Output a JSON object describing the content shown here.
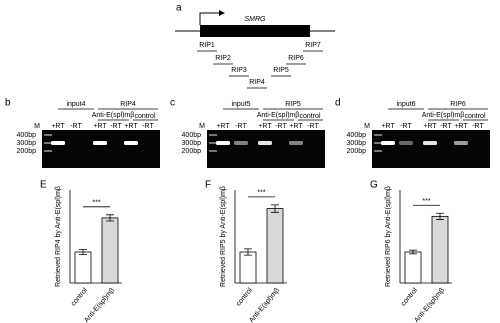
{
  "panel_a": {
    "label": "a",
    "gene": "SMRG",
    "rips": [
      "RIP1",
      "RIP2",
      "RIP3",
      "RIP4",
      "RIP5",
      "RIP6",
      "RIP7"
    ]
  },
  "gels": [
    {
      "label": "b",
      "input": "input4",
      "rip": "RIP4",
      "antibody": "Anti-E(spl)mβ",
      "control": "control",
      "marker": "M",
      "lanes": [
        "+RT",
        "-RT",
        "+RT",
        "-RT",
        "+RT",
        "-RT"
      ],
      "sizes": [
        "400bp",
        "300bp",
        "200bp"
      ]
    },
    {
      "label": "c",
      "input": "input5",
      "rip": "RIP5",
      "antibody": "Anti-E(spl)mβ",
      "control": "control",
      "marker": "M",
      "lanes": [
        "+RT",
        "-RT",
        "+RT",
        "-RT",
        "+RT",
        "-RT"
      ],
      "sizes": [
        "400bp",
        "300bp",
        "200bp"
      ]
    },
    {
      "label": "d",
      "input": "input6",
      "rip": "RIP6",
      "antibody": "Anti-E(spl)mβ",
      "control": "control",
      "marker": "M",
      "lanes": [
        "+RT",
        "-RT",
        "+RT",
        "-RT",
        "+RT",
        "-RT"
      ],
      "sizes": [
        "400bp",
        "300bp",
        "200bp"
      ]
    }
  ],
  "chart_data": [
    {
      "type": "bar",
      "label": "E",
      "y_label": "Retrieved RIP4 by Anti-E(spl)mβ",
      "categories": [
        "control",
        "Anti-E(spl)mβ"
      ],
      "values": [
        1.0,
        2.1
      ],
      "errors": [
        0.08,
        0.1
      ],
      "colors": [
        "#ffffff",
        "#d9d9d9"
      ],
      "significance": "***",
      "ylim": [
        0,
        3
      ]
    },
    {
      "type": "bar",
      "label": "F",
      "y_label": "Retrieved RIP5 by Anti-E(spl)mβ",
      "categories": [
        "control",
        "Anti-E(spl)mβ"
      ],
      "values": [
        1.0,
        2.4
      ],
      "errors": [
        0.1,
        0.12
      ],
      "colors": [
        "#ffffff",
        "#d9d9d9"
      ],
      "significance": "***",
      "ylim": [
        0,
        3
      ]
    },
    {
      "type": "bar",
      "label": "G",
      "y_label": "Retrieved RIP6 by Anti-E(spl)mβ",
      "categories": [
        "control",
        "Anti-E(spl)mβ"
      ],
      "values": [
        1.0,
        2.15
      ],
      "errors": [
        0.06,
        0.1
      ],
      "colors": [
        "#ffffff",
        "#d9d9d9"
      ],
      "significance": "***",
      "ylim": [
        0,
        3
      ]
    }
  ]
}
